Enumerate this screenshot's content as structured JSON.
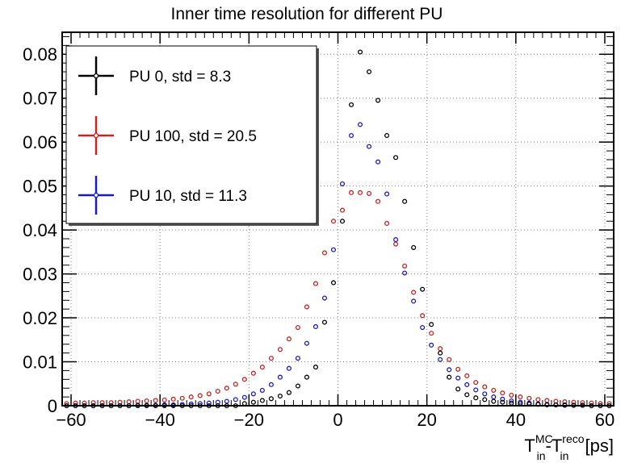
{
  "chart_data": {
    "type": "scatter",
    "title": "Inner time resolution for different PU",
    "xlabel": {
      "prefix": "T",
      "sup1": "MC",
      "sub1": "in",
      "mid": "-T",
      "sup2": "reco",
      "sub2": "in",
      "suffix": " [ps]"
    },
    "ylabel": "",
    "xlim": [
      -62,
      62
    ],
    "ylim": [
      0,
      0.085
    ],
    "xticks": [
      -60,
      -40,
      -20,
      0,
      20,
      40,
      60
    ],
    "xtick_labels": [
      "−60",
      "−40",
      "−20",
      "0",
      "20",
      "40",
      "60"
    ],
    "yticks": [
      0,
      0.01,
      0.02,
      0.03,
      0.04,
      0.05,
      0.06,
      0.07,
      0.08
    ],
    "ytick_labels": [
      "0",
      "0.01",
      "0.02",
      "0.03",
      "0.04",
      "0.05",
      "0.06",
      "0.07",
      "0.08"
    ],
    "grid": true,
    "legend_position": "top-left",
    "series": [
      {
        "name": "PU 0, std = 8.3",
        "color": "#000000",
        "x": [
          -61,
          -59,
          -57,
          -55,
          -53,
          -51,
          -49,
          -47,
          -45,
          -43,
          -41,
          -39,
          -37,
          -35,
          -33,
          -31,
          -29,
          -27,
          -25,
          -23,
          -21,
          -19,
          -17,
          -15,
          -13,
          -11,
          -9,
          -7,
          -5,
          -3,
          -1,
          1,
          3,
          5,
          7,
          9,
          11,
          13,
          15,
          17,
          19,
          21,
          23,
          25,
          27,
          29,
          31,
          33,
          35,
          37,
          39,
          41,
          43,
          45,
          47,
          49,
          51,
          53,
          55,
          57,
          59,
          61
        ],
        "y": [
          0,
          0,
          0,
          0,
          0,
          0,
          0,
          0,
          0,
          0,
          0,
          0,
          0,
          0,
          0,
          0,
          0,
          0,
          0,
          0,
          0.0005,
          0.0008,
          0.0012,
          0.0016,
          0.0022,
          0.003,
          0.0045,
          0.0065,
          0.0088,
          0.019,
          0.028,
          0.042,
          0.0685,
          0.0805,
          0.076,
          0.0695,
          0.0615,
          0.0565,
          0.0465,
          0.036,
          0.0265,
          0.0185,
          0.012,
          0.0065,
          0.0038,
          0.0025,
          0.0018,
          0.0014,
          0.001,
          0.0008,
          0.0006,
          0.0005,
          0.0004,
          0.0003,
          0.0002,
          0.0002,
          0.0001,
          0.0001,
          0.0001,
          0,
          0,
          0
        ]
      },
      {
        "name": "PU 100, std = 20.5",
        "color": "#cc2222",
        "x": [
          -61,
          -59,
          -57,
          -55,
          -53,
          -51,
          -49,
          -47,
          -45,
          -43,
          -41,
          -39,
          -37,
          -35,
          -33,
          -31,
          -29,
          -27,
          -25,
          -23,
          -21,
          -19,
          -17,
          -15,
          -13,
          -11,
          -9,
          -7,
          -5,
          -3,
          -1,
          1,
          3,
          5,
          7,
          9,
          11,
          13,
          15,
          17,
          19,
          21,
          23,
          25,
          27,
          29,
          31,
          33,
          35,
          37,
          39,
          41,
          43,
          45,
          47,
          49,
          51,
          53,
          55,
          57,
          59,
          61
        ],
        "y": [
          0.0005,
          0.0006,
          0.0006,
          0.0007,
          0.0007,
          0.0007,
          0.0008,
          0.0009,
          0.001,
          0.0011,
          0.0012,
          0.0013,
          0.0015,
          0.0017,
          0.002,
          0.0023,
          0.0027,
          0.0033,
          0.004,
          0.0049,
          0.006,
          0.0074,
          0.0088,
          0.0108,
          0.0128,
          0.0152,
          0.0178,
          0.0225,
          0.0278,
          0.0348,
          0.042,
          0.0445,
          0.0485,
          0.0485,
          0.0483,
          0.0465,
          0.0415,
          0.0368,
          0.0318,
          0.0258,
          0.0205,
          0.0165,
          0.013,
          0.0105,
          0.0083,
          0.0068,
          0.0053,
          0.0043,
          0.0035,
          0.0029,
          0.0024,
          0.002,
          0.0017,
          0.0014,
          0.0012,
          0.001,
          0.0009,
          0.0008,
          0.0007,
          0.0006,
          0.0005,
          0.0005
        ]
      },
      {
        "name": "PU 10, std = 11.3",
        "color": "#1a1acc",
        "x": [
          -61,
          -59,
          -57,
          -55,
          -53,
          -51,
          -49,
          -47,
          -45,
          -43,
          -41,
          -39,
          -37,
          -35,
          -33,
          -31,
          -29,
          -27,
          -25,
          -23,
          -21,
          -19,
          -17,
          -15,
          -13,
          -11,
          -9,
          -7,
          -5,
          -3,
          -1,
          1,
          3,
          5,
          7,
          9,
          11,
          13,
          15,
          17,
          19,
          21,
          23,
          25,
          27,
          29,
          31,
          33,
          35,
          37,
          39,
          41,
          43,
          45,
          47,
          49,
          51,
          53,
          55,
          57,
          59,
          61
        ],
        "y": [
          0,
          0,
          0,
          0,
          0,
          0,
          0,
          0,
          0.0001,
          0.0001,
          0.0001,
          0.0002,
          0.0002,
          0.0003,
          0.0004,
          0.0005,
          0.0006,
          0.0008,
          0.001,
          0.0014,
          0.0019,
          0.0027,
          0.0035,
          0.0048,
          0.0065,
          0.0085,
          0.0108,
          0.0142,
          0.018,
          0.0245,
          0.0355,
          0.0505,
          0.0615,
          0.064,
          0.059,
          0.0555,
          0.0482,
          0.0378,
          0.0302,
          0.0238,
          0.0178,
          0.0138,
          0.0105,
          0.0082,
          0.0063,
          0.0048,
          0.0036,
          0.0027,
          0.002,
          0.0015,
          0.0011,
          0.0008,
          0.0006,
          0.0004,
          0.0003,
          0.0002,
          0.0002,
          0.0001,
          0.0001,
          0,
          0,
          0
        ]
      }
    ]
  }
}
